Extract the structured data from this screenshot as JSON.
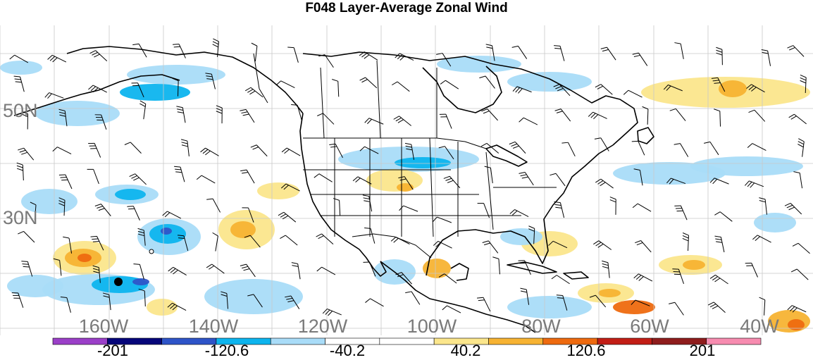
{
  "title": "F048 Layer-Average Zonal Wind",
  "latitude_labels": [
    "50N",
    "30N"
  ],
  "longitude_labels": [
    "160W",
    "140W",
    "120W",
    "100W",
    "80W",
    "60W",
    "40W"
  ],
  "colorbar": {
    "colors": [
      "#9b3fc8",
      "#06067a",
      "#2e54c8",
      "#0db4ee",
      "#a9dcf8",
      "#ffffff",
      "#ffffff",
      "#fbe68c",
      "#f7b333",
      "#ee6a0f",
      "#c21e16",
      "#8f1d1d",
      "#f78cb0"
    ],
    "labels": [
      "-201",
      "-120.6",
      "-40.2",
      "40.2",
      "120.6",
      "201"
    ]
  },
  "markers": [
    "hawaii-dot",
    "midway-dot"
  ]
}
